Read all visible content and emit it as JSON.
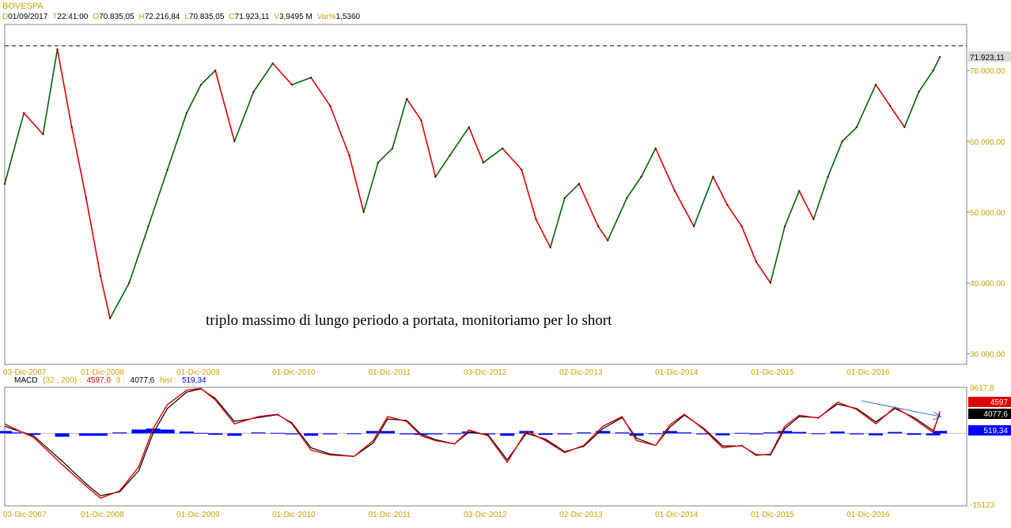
{
  "header": {
    "symbol": "BOVESPA",
    "fields": [
      {
        "key": "D",
        "value": "01/09/2017"
      },
      {
        "key": "T",
        "value": "22:41:00"
      },
      {
        "key": "O",
        "value": "70.835,05"
      },
      {
        "key": "H",
        "value": "72.216,84"
      },
      {
        "key": "L",
        "value": "70.835,05"
      },
      {
        "key": "C",
        "value": "71.923,11"
      },
      {
        "key": "V",
        "value": "3,9495 M"
      },
      {
        "key": "Var%",
        "value": "1,5360"
      }
    ]
  },
  "annotation": "triplo massimo di lungo periodo a portata, monitoriamo per lo short",
  "macd_header": {
    "name": "MACD",
    "params": "(32 , 200) :",
    "macd_value": "4597,0",
    "signal_label": "9 :",
    "signal_value": "4077,6",
    "hist_label": "hist :",
    "hist_value": "519,34"
  },
  "colors": {
    "up": "#006400",
    "down": "#e00000",
    "macd": "#e00000",
    "signal": "#000000",
    "hist": "#0000ff",
    "axis_text": "#c8a000",
    "trend": "#3070c0"
  },
  "chart_data": [
    {
      "type": "line",
      "name": "price",
      "title": "BOVESPA",
      "y_ticks": [
        30000,
        40000,
        50000,
        60000,
        70000
      ],
      "y_tick_labels": [
        "30.000,00",
        "40.000,00",
        "50.000,00",
        "60.000,00",
        "70.000,00"
      ],
      "ylim": [
        28500,
        76500
      ],
      "last_price": 71923.11,
      "last_price_label": "71.923,11",
      "resistance": 73500,
      "x_labels": [
        "03-Dic-2007",
        "01-Dic-2008",
        "01-Dic-2009",
        "01-Dic-2010",
        "01-Dic-2011",
        "03-Dic-2012",
        "02-Dic-2013",
        "01-Dic-2014",
        "01-Dic-2015",
        "01-Dic-2016"
      ],
      "x": [
        2007.9,
        2008.1,
        2008.3,
        2008.45,
        2008.6,
        2008.75,
        2008.9,
        2009.0,
        2009.2,
        2009.4,
        2009.6,
        2009.8,
        2009.95,
        2010.1,
        2010.3,
        2010.5,
        2010.7,
        2010.9,
        2011.1,
        2011.3,
        2011.5,
        2011.65,
        2011.8,
        2011.95,
        2012.1,
        2012.25,
        2012.4,
        2012.55,
        2012.75,
        2012.9,
        2013.1,
        2013.3,
        2013.45,
        2013.6,
        2013.75,
        2013.9,
        2014.1,
        2014.2,
        2014.4,
        2014.55,
        2014.7,
        2014.9,
        2015.1,
        2015.3,
        2015.45,
        2015.6,
        2015.75,
        2015.9,
        2016.05,
        2016.2,
        2016.35,
        2016.5,
        2016.65,
        2016.8,
        2017.0,
        2017.15,
        2017.3,
        2017.45,
        2017.6,
        2017.67
      ],
      "y": [
        54000,
        64000,
        61000,
        73000,
        62000,
        52000,
        41000,
        35000,
        40000,
        48000,
        56000,
        64000,
        68000,
        70000,
        60000,
        67000,
        71000,
        68000,
        69000,
        65000,
        58000,
        50000,
        57000,
        59000,
        66000,
        63000,
        55000,
        58000,
        62000,
        57000,
        59000,
        56000,
        49000,
        45000,
        52000,
        54000,
        48000,
        46000,
        52000,
        55000,
        59000,
        53000,
        48000,
        55000,
        51000,
        48000,
        43000,
        40000,
        48000,
        53000,
        49000,
        55000,
        60000,
        62000,
        68000,
        65000,
        62000,
        67000,
        70000,
        71900
      ]
    },
    {
      "type": "line",
      "name": "MACD (32 , 200)",
      "y_top_label": "9617,8",
      "y_bottom_label": "-15123",
      "ylim": [
        -15123,
        9617.8
      ],
      "x": [
        2007.9,
        2008.0,
        2008.2,
        2008.5,
        2008.75,
        2008.9,
        2009.1,
        2009.3,
        2009.45,
        2009.6,
        2009.8,
        2009.95,
        2010.1,
        2010.3,
        2010.55,
        2010.75,
        2010.9,
        2011.1,
        2011.3,
        2011.55,
        2011.75,
        2011.9,
        2012.1,
        2012.25,
        2012.4,
        2012.6,
        2012.75,
        2012.95,
        2013.15,
        2013.35,
        2013.55,
        2013.75,
        2013.95,
        2014.15,
        2014.35,
        2014.5,
        2014.7,
        2014.85,
        2015.0,
        2015.2,
        2015.4,
        2015.6,
        2015.75,
        2015.9,
        2016.05,
        2016.2,
        2016.4,
        2016.6,
        2016.8,
        2017.0,
        2017.2,
        2017.4,
        2017.6,
        2017.67
      ],
      "macd": [
        2000,
        1000,
        -800,
        -6500,
        -11000,
        -13500,
        -12000,
        -7000,
        1000,
        6000,
        9000,
        9400,
        7000,
        2000,
        3500,
        4000,
        2000,
        -3500,
        -4500,
        -4800,
        -1500,
        3500,
        2500,
        -500,
        -1500,
        -2200,
        700,
        -500,
        -6000,
        500,
        -1500,
        -4000,
        -2500,
        1500,
        3500,
        -1500,
        -2500,
        1800,
        4000,
        900,
        -3000,
        -2500,
        -4600,
        -4300,
        1500,
        3800,
        3200,
        6500,
        5000,
        2000,
        5500,
        3000,
        200,
        4597
      ],
      "signal": [
        1500,
        800,
        -500,
        -5800,
        -10500,
        -13000,
        -12200,
        -7800,
        0,
        5200,
        8600,
        9300,
        7300,
        2500,
        3300,
        3900,
        2200,
        -3000,
        -4300,
        -4800,
        -2000,
        3000,
        2700,
        -200,
        -1300,
        -2200,
        300,
        -300,
        -5500,
        0,
        -1200,
        -3800,
        -2700,
        1000,
        3300,
        -1000,
        -2500,
        1300,
        3800,
        1100,
        -2600,
        -2600,
        -4400,
        -4500,
        1000,
        3500,
        3300,
        6100,
        5200,
        2400,
        5200,
        3300,
        600,
        4077.6
      ],
      "hist": [
        500,
        200,
        -300,
        -700,
        -500,
        -500,
        200,
        800,
        1000,
        800,
        400,
        100,
        -300,
        -500,
        200,
        100,
        -200,
        -500,
        -200,
        0,
        500,
        500,
        -200,
        -300,
        -200,
        0,
        400,
        -200,
        -500,
        500,
        -300,
        -200,
        200,
        500,
        200,
        -500,
        0,
        500,
        200,
        -200,
        -400,
        100,
        -200,
        200,
        500,
        300,
        -100,
        400,
        -200,
        -400,
        300,
        -300,
        -400,
        519.34
      ]
    }
  ]
}
